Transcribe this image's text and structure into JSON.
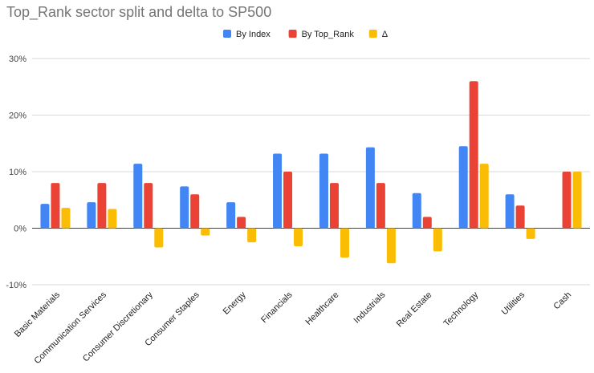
{
  "chart_data": {
    "type": "bar",
    "title": "Top_Rank sector split and delta to SP500",
    "xlabel": "",
    "ylabel": "",
    "ylim": [
      -10,
      30
    ],
    "yticks": [
      -10,
      0,
      10,
      20,
      30
    ],
    "ytick_labels": [
      "-10%",
      "0%",
      "10%",
      "20%",
      "30%"
    ],
    "grid": true,
    "legend_position": "top",
    "categories": [
      "Basic Materials",
      "Communication Services",
      "Consumer Discretionary",
      "Consumer Staples",
      "Energy",
      "Financials",
      "Healthcare",
      "Industrials",
      "Real Estate",
      "Technology",
      "Utilities",
      "Cash"
    ],
    "series": [
      {
        "name": "By Index",
        "color": "#4285f4",
        "values": [
          4.3,
          4.6,
          11.4,
          7.4,
          4.6,
          13.2,
          13.2,
          14.3,
          6.2,
          14.5,
          6.0,
          0
        ]
      },
      {
        "name": "By Top_Rank",
        "color": "#ea4335",
        "values": [
          8.0,
          8.0,
          8.0,
          6.0,
          2.0,
          10.0,
          8.0,
          8.0,
          2.0,
          26.0,
          4.0,
          10.0
        ]
      },
      {
        "name": "Δ",
        "color": "#fbbc04",
        "values": [
          3.6,
          3.4,
          -3.4,
          -1.3,
          -2.5,
          -3.2,
          -5.2,
          -6.2,
          -4.1,
          11.4,
          -1.9,
          10.0
        ]
      }
    ]
  }
}
